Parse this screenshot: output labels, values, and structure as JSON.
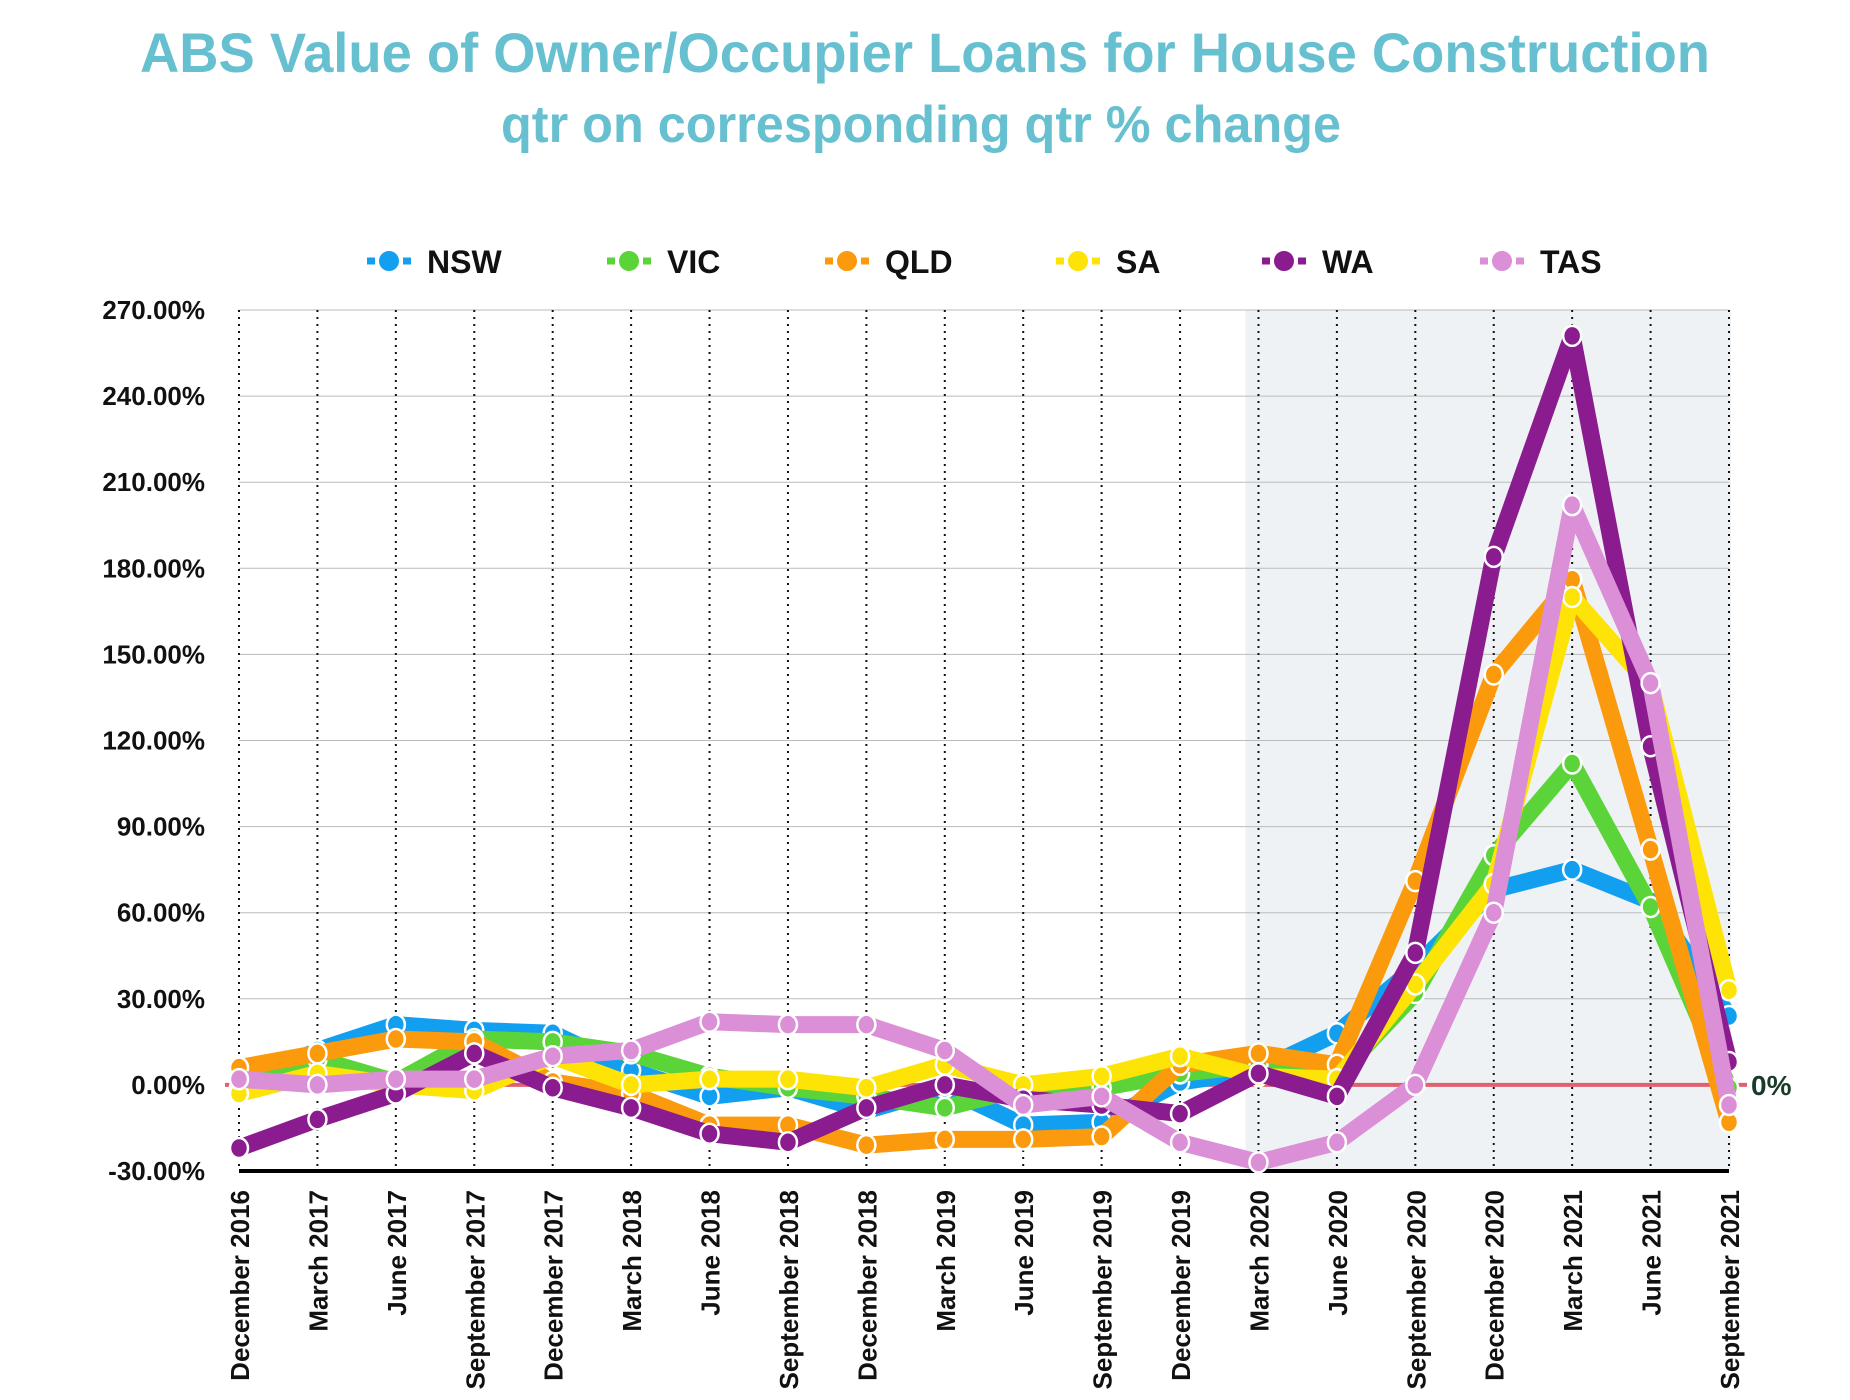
{
  "chart_data": {
    "type": "line",
    "title": "ABS Value of Owner/Occupier Loans for House Construction",
    "subtitle": "qtr on corresponding qtr % change",
    "xlabel": "",
    "ylabel": "",
    "ylim": [
      -30,
      270
    ],
    "y_ticks": [
      -30,
      0,
      30,
      60,
      90,
      120,
      150,
      180,
      210,
      240,
      270
    ],
    "y_tick_labels": [
      "-30.00%",
      "0.00%",
      "30.00%",
      "60.00%",
      "90.00%",
      "120.00%",
      "150.00%",
      "180.00%",
      "210.00%",
      "240.00%",
      "270.00%"
    ],
    "zero_line_label": "0%",
    "legend_position": "top",
    "grid": true,
    "shaded_from_category": "March 2020",
    "categories": [
      "December 2016",
      "March 2017",
      "June 2017",
      "September 2017",
      "December 2017",
      "March 2018",
      "June 2018",
      "September 2018",
      "December 2018",
      "March 2019",
      "June 2019",
      "September 2019",
      "December 2019",
      "March 2020",
      "June 2020",
      "September 2020",
      "December 2020",
      "March 2021",
      "June 2021",
      "September 2021"
    ],
    "series": [
      {
        "name": "NSW",
        "color": "#139ff0",
        "values": [
          -1,
          12,
          21,
          19,
          18,
          5,
          -4,
          -1,
          -9,
          -1,
          -14,
          -13,
          1,
          5,
          18,
          41,
          68,
          75,
          64,
          24
        ]
      },
      {
        "name": "VIC",
        "color": "#5bd43a",
        "values": [
          3,
          9,
          1,
          16,
          15,
          11,
          3,
          -1,
          -4,
          -8,
          -1,
          -1,
          4,
          7,
          3,
          32,
          80,
          112,
          62,
          -1
        ]
      },
      {
        "name": "QLD",
        "color": "#fb9a0c",
        "values": [
          6,
          11,
          16,
          15,
          1,
          -3,
          -14,
          -14,
          -21,
          -19,
          -19,
          -18,
          7,
          11,
          7,
          71,
          143,
          176,
          82,
          -13
        ]
      },
      {
        "name": "SA",
        "color": "#fde306",
        "values": [
          -3,
          4,
          0,
          -2,
          10,
          0,
          2,
          2,
          -1,
          7,
          0,
          3,
          10,
          3,
          2,
          35,
          70,
          170,
          139,
          33
        ]
      },
      {
        "name": "WA",
        "color": "#8b1c8f",
        "values": [
          -22,
          -12,
          -3,
          11,
          -1,
          -8,
          -17,
          -20,
          -8,
          0,
          -5,
          -7,
          -10,
          4,
          -4,
          46,
          184,
          261,
          118,
          8
        ]
      },
      {
        "name": "TAS",
        "color": "#db8fd6",
        "values": [
          2,
          0,
          2,
          2,
          10,
          12,
          22,
          21,
          21,
          12,
          -7,
          -4,
          -20,
          -27,
          -20,
          0,
          60,
          202,
          140,
          -7
        ]
      }
    ],
    "colors": {
      "title": "#66c0d0",
      "zero_line": "#e06070",
      "shade": "#eff2f4"
    }
  }
}
